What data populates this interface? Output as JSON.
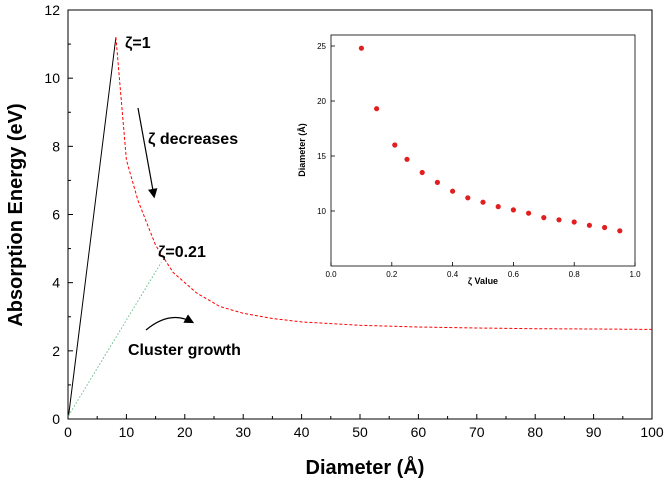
{
  "chart_data": [
    {
      "type": "line",
      "xlabel": "Diameter (Å)",
      "ylabel": "Absorption Energy (eV)",
      "xlim": [
        0,
        100
      ],
      "ylim": [
        0,
        12
      ],
      "x_ticks": [
        "0",
        "10",
        "20",
        "30",
        "40",
        "50",
        "60",
        "70",
        "80",
        "90",
        "100"
      ],
      "y_ticks": [
        "0",
        "2",
        "4",
        "6",
        "8",
        "10",
        "12"
      ],
      "series": [
        {
          "color": "#000000",
          "style": "solid",
          "x": [
            0.1,
            8.2
          ],
          "y": [
            0.1,
            11.2
          ]
        },
        {
          "color": "#ff0000",
          "style": "dashed",
          "x": [
            8.2,
            10,
            12,
            15,
            18,
            22,
            26,
            30,
            35,
            40,
            50,
            60,
            70,
            80,
            90,
            100
          ],
          "y": [
            11.2,
            7.6,
            6.4,
            5.1,
            4.3,
            3.7,
            3.3,
            3.1,
            2.95,
            2.85,
            2.75,
            2.7,
            2.67,
            2.65,
            2.64,
            2.63
          ]
        },
        {
          "color": "#66bb88",
          "style": "dotted",
          "x": [
            0.1,
            16.0
          ],
          "y": [
            0.1,
            4.6
          ]
        }
      ],
      "annotations": {
        "zeta_one": "ζ=1",
        "zeta_decreases": "ζ decreases",
        "zeta_021": "ζ=0.21",
        "cluster_growth": "Cluster growth"
      }
    },
    {
      "type": "scatter",
      "xlabel": "ζ Value",
      "ylabel": "Diameter (Å)",
      "xlim": [
        0.0,
        1.0
      ],
      "ylim": [
        5,
        26
      ],
      "x_ticks": [
        "0.0",
        "0.2",
        "0.4",
        "0.6",
        "0.8",
        "1.0"
      ],
      "y_ticks": [
        "10",
        "15",
        "20",
        "25"
      ],
      "points_x": [
        0.1,
        0.15,
        0.21,
        0.25,
        0.3,
        0.35,
        0.4,
        0.45,
        0.5,
        0.55,
        0.6,
        0.65,
        0.7,
        0.75,
        0.8,
        0.85,
        0.9,
        0.95
      ],
      "points_y": [
        24.8,
        19.3,
        16.0,
        14.7,
        13.5,
        12.6,
        11.8,
        11.2,
        10.8,
        10.4,
        10.1,
        9.8,
        9.4,
        9.2,
        9.0,
        8.7,
        8.5,
        8.2
      ],
      "color": "#e02020"
    }
  ]
}
